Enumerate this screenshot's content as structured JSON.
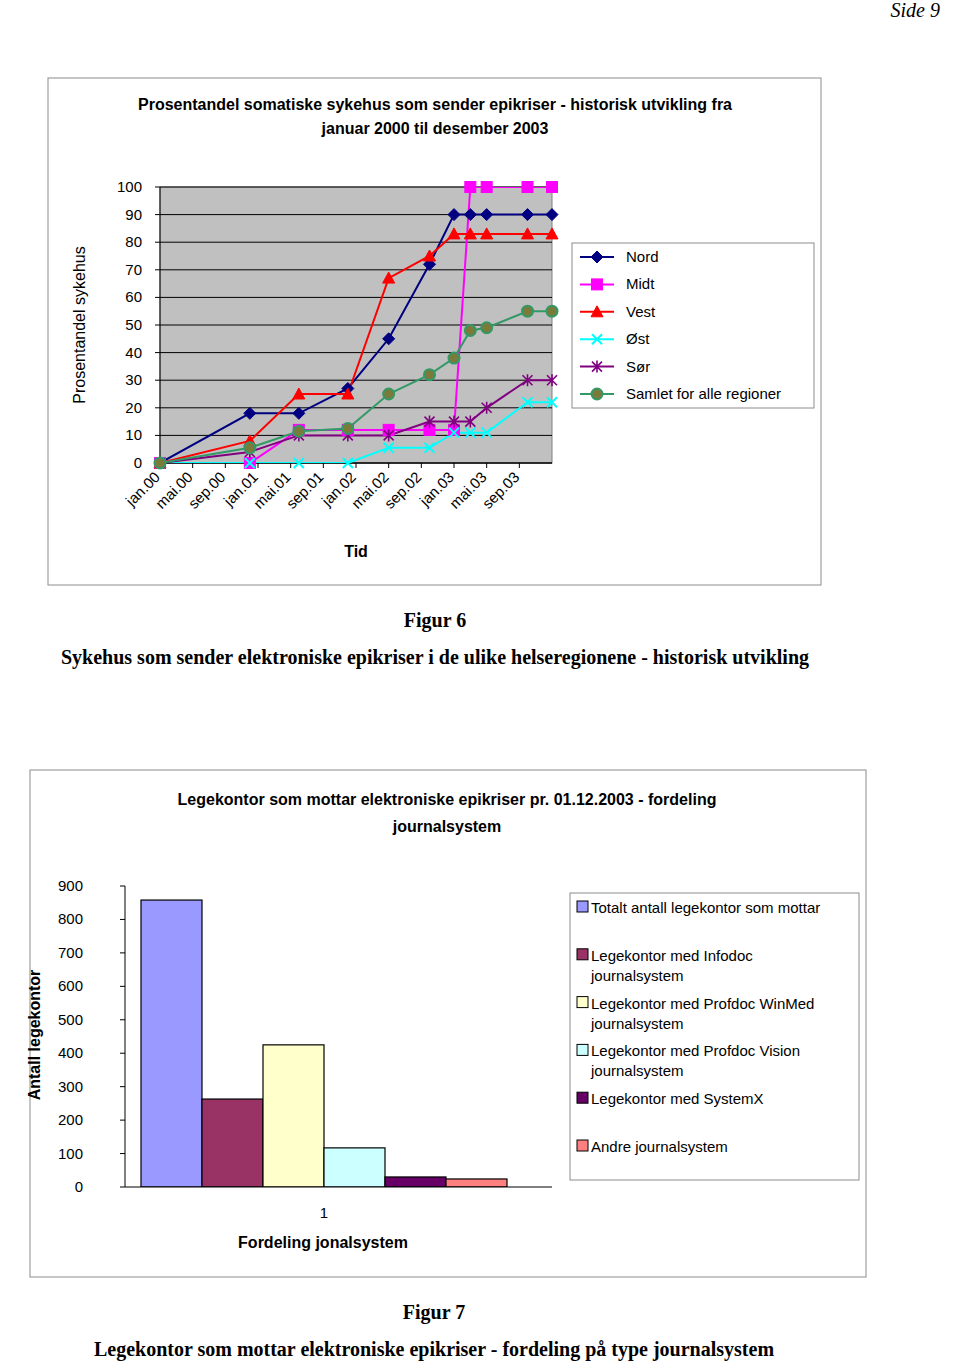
{
  "page_number": "Side 9",
  "chart_data": [
    {
      "type": "line",
      "title": "Prosentandel somatiske sykehus som sender epikriser - historisk utvikling fra januar 2000 til desember 2003",
      "x_label": "Tid",
      "y_label": "Prosentandel sykehus",
      "x": [
        0,
        11,
        17,
        23,
        28,
        33,
        36,
        38,
        40,
        45,
        48
      ],
      "xlim": [
        0,
        48
      ],
      "xticks": [
        {
          "value": 0,
          "label": "jan.00"
        },
        {
          "value": 4,
          "label": "mai.00"
        },
        {
          "value": 8,
          "label": "sep.00"
        },
        {
          "value": 12,
          "label": "jan.01"
        },
        {
          "value": 16,
          "label": "mai.01"
        },
        {
          "value": 20,
          "label": "sep.01"
        },
        {
          "value": 24,
          "label": "jan.02"
        },
        {
          "value": 28,
          "label": "mai.02"
        },
        {
          "value": 32,
          "label": "sep.02"
        },
        {
          "value": 36,
          "label": "jan.03"
        },
        {
          "value": 40,
          "label": "mai.03"
        },
        {
          "value": 44,
          "label": "sep.03"
        }
      ],
      "ylim": [
        0,
        100
      ],
      "yticks": [
        0,
        10,
        20,
        30,
        40,
        50,
        60,
        70,
        80,
        90,
        100
      ],
      "grid": true,
      "legend": "right",
      "series": [
        {
          "name": "Nord",
          "color": "#000080",
          "marker": "diamond",
          "values": [
            0,
            18,
            18,
            27,
            45,
            72,
            90,
            90,
            90,
            90,
            90
          ]
        },
        {
          "name": "Midt",
          "color": "#ff00ff",
          "marker": "square",
          "values": [
            0,
            0,
            12,
            12,
            12,
            12,
            12,
            100,
            100,
            100,
            100
          ]
        },
        {
          "name": "Vest",
          "color": "#ff0000",
          "marker": "triangle",
          "values": [
            0,
            8,
            25,
            25,
            67,
            75,
            83,
            83,
            83,
            83,
            83
          ]
        },
        {
          "name": "Øst",
          "color": "#00ffff",
          "marker": "x",
          "values": [
            0,
            0,
            0,
            0,
            5.5,
            5.5,
            11,
            11,
            11,
            22,
            22
          ]
        },
        {
          "name": "Sør",
          "color": "#800080",
          "marker": "star",
          "values": [
            0,
            4,
            10,
            10,
            10,
            15,
            15,
            15,
            20,
            30,
            30
          ]
        },
        {
          "name": "Samlet for alle regioner",
          "color": "#339966",
          "marker": "circle",
          "values": [
            0,
            5.5,
            11.5,
            12.5,
            25,
            32,
            38,
            48,
            49,
            55,
            55
          ]
        }
      ]
    },
    {
      "type": "bar",
      "title": "Legekontor som mottar elektroniske epikriser pr. 01.12.2003 - fordeling journalsystem",
      "x_label": "Fordeling jonalsystem",
      "y_label": "Antall legekontor",
      "categories": [
        "1"
      ],
      "ylim": [
        0,
        900
      ],
      "yticks": [
        0,
        100,
        200,
        300,
        400,
        500,
        600,
        700,
        800,
        900
      ],
      "grid": false,
      "legend": "right",
      "series": [
        {
          "name": "Totalt antall legekontor som mottar",
          "color": "#9999ff",
          "values": [
            858
          ]
        },
        {
          "name": "Legekontor med Infodoc journalsystem",
          "color": "#993366",
          "values": [
            263
          ]
        },
        {
          "name": "Legekontor med Profdoc WinMed journalsystem",
          "color": "#ffffcc",
          "values": [
            425
          ]
        },
        {
          "name": "Legekontor med Profdoc Vision journalsystem",
          "color": "#ccffff",
          "values": [
            117
          ]
        },
        {
          "name": "Legekontor med SystemX",
          "color": "#660066",
          "values": [
            30
          ]
        },
        {
          "name": "Andre journalsystem",
          "color": "#ff8080",
          "values": [
            24
          ]
        }
      ]
    }
  ],
  "captions": [
    {
      "label": "Figur 6",
      "text": "Sykehus som sender elektroniske epikriser i de ulike helseregionene - historisk utvikling"
    },
    {
      "label": "Figur 7",
      "text": "Legekontor som mottar elektroniske epikriser - fordeling på type journalsystem"
    }
  ]
}
